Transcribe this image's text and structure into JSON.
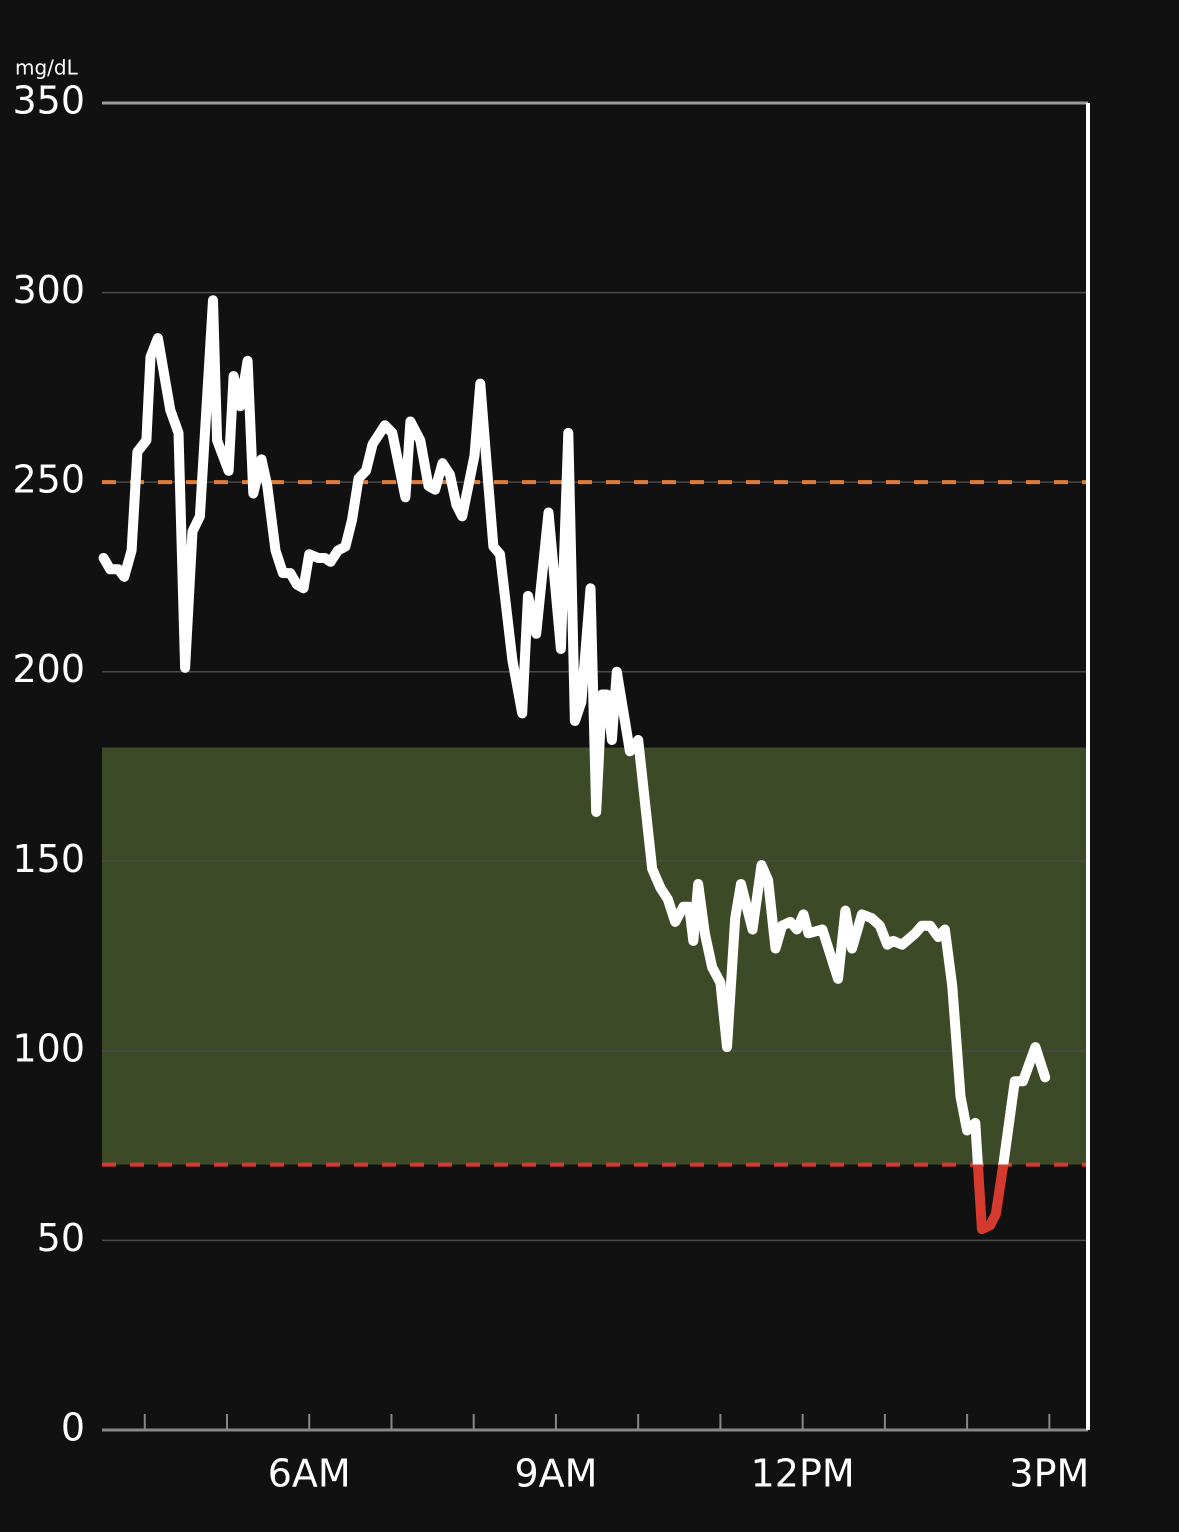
{
  "chart_data": {
    "type": "line",
    "y_unit": "mg/dL",
    "x": [
      3.5,
      3.58,
      3.68,
      3.75,
      3.84,
      3.91,
      4.02,
      4.07,
      4.16,
      4.31,
      4.41,
      4.49,
      4.58,
      4.67,
      4.83,
      4.88,
      5.02,
      5.08,
      5.16,
      5.25,
      5.32,
      5.42,
      5.49,
      5.59,
      5.68,
      5.77,
      5.85,
      5.93,
      6.0,
      6.11,
      6.19,
      6.26,
      6.35,
      6.44,
      6.52,
      6.6,
      6.69,
      6.77,
      6.92,
      7.01,
      7.17,
      7.23,
      7.35,
      7.45,
      7.53,
      7.62,
      7.71,
      7.79,
      7.86,
      8.01,
      8.08,
      8.15,
      8.24,
      8.32,
      8.47,
      8.59,
      8.66,
      8.76,
      8.91,
      9.06,
      9.15,
      9.23,
      9.31,
      9.42,
      9.49,
      9.56,
      9.62,
      9.68,
      9.74,
      9.9,
      10.0,
      10.17,
      10.27,
      10.36,
      10.45,
      10.55,
      10.62,
      10.67,
      10.73,
      10.81,
      10.9,
      11.0,
      11.08,
      11.18,
      11.25,
      11.39,
      11.5,
      11.58,
      11.67,
      11.75,
      11.85,
      11.93,
      12.01,
      12.07,
      12.24,
      12.43,
      12.52,
      12.6,
      12.72,
      12.84,
      12.94,
      13.03,
      13.1,
      13.21,
      13.37,
      13.45,
      13.55,
      13.65,
      13.73,
      13.82,
      13.92,
      14.0,
      14.1,
      14.18,
      14.28,
      14.35,
      14.44,
      14.58,
      14.68,
      14.83,
      14.95
    ],
    "series": [
      {
        "color": "#ffffff",
        "low_color": "#d63a2f",
        "values": [
          230,
          227,
          227,
          225,
          232,
          258,
          261,
          283,
          288,
          269,
          263,
          201,
          237,
          241,
          298,
          261,
          253,
          278,
          270,
          282,
          247,
          256,
          249,
          232,
          226,
          226,
          223,
          222,
          231,
          230,
          230,
          229,
          232,
          233,
          240,
          251,
          253,
          260,
          265,
          263,
          246,
          266,
          261,
          249,
          248,
          255,
          252,
          244,
          241,
          257,
          276,
          257,
          233,
          231,
          203,
          189,
          220,
          210,
          242,
          206,
          263,
          187,
          192,
          222,
          163,
          194,
          194,
          182,
          200,
          179,
          182,
          148,
          143,
          140,
          134,
          138,
          138,
          129,
          144,
          131,
          122,
          118,
          101,
          135,
          144,
          132,
          149,
          145,
          127,
          133,
          134,
          132,
          136,
          131,
          132,
          119,
          137,
          127,
          136,
          135,
          133,
          128,
          129,
          128,
          131,
          133,
          133,
          130,
          132,
          117,
          88,
          79,
          81,
          53,
          54,
          57,
          70,
          92,
          92,
          101,
          93
        ]
      }
    ],
    "xlim": [
      3.48,
      15.47
    ],
    "xticks": [
      {
        "value": 6,
        "label": "6AM"
      },
      {
        "value": 9,
        "label": "9AM"
      },
      {
        "value": 12,
        "label": "12PM"
      },
      {
        "value": 15,
        "label": "3PM"
      }
    ],
    "xminor_ticks": [
      4,
      5,
      6,
      7,
      8,
      9,
      10,
      11,
      12,
      13,
      14,
      15
    ],
    "ylim": [
      0,
      350
    ],
    "yticks": [
      0,
      50,
      100,
      150,
      200,
      250,
      300,
      350
    ],
    "grid": true,
    "target_range": [
      70,
      180
    ],
    "target_color": "#3d4a27",
    "high_threshold": 250,
    "high_color": "#e07b39",
    "low_threshold": 70,
    "low_color": "#d63a2f"
  }
}
